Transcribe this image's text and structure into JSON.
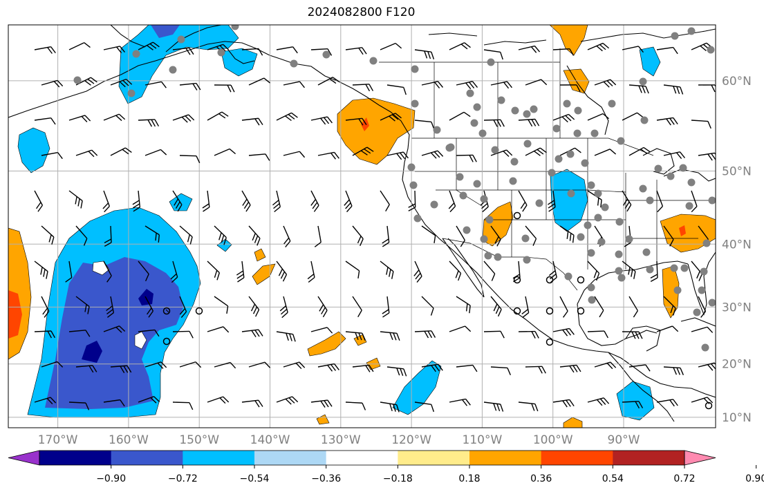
{
  "title": "2024082800 F120",
  "map": {
    "lon_range": [
      -177,
      -77
    ],
    "lat_range": [
      8,
      65
    ],
    "lat_gridlines": [
      {
        "value": 10,
        "label": "10°N"
      },
      {
        "value": 20,
        "label": "20°N"
      },
      {
        "value": 30,
        "label": "30°N"
      },
      {
        "value": 40,
        "label": "40°N"
      },
      {
        "value": 50,
        "label": "50°N"
      },
      {
        "value": 60,
        "label": "60°N"
      }
    ],
    "lon_gridlines": [
      {
        "value": -170,
        "label": "170°W"
      },
      {
        "value": -160,
        "label": "160°W"
      },
      {
        "value": -150,
        "label": "150°W"
      },
      {
        "value": -140,
        "label": "140°W"
      },
      {
        "value": -130,
        "label": "130°W"
      },
      {
        "value": -120,
        "label": "120°W"
      },
      {
        "value": -110,
        "label": "110°W"
      },
      {
        "value": -100,
        "label": "100°W"
      },
      {
        "value": -90,
        "label": "90°W"
      }
    ],
    "grid_color": "#b0b0b0",
    "fill_field_name": "",
    "overlays": [
      "wind-barbs",
      "station-markers",
      "coastlines",
      "state-borders"
    ]
  },
  "colorbar": {
    "orientation": "horizontal",
    "extend": "both",
    "bins": [
      {
        "color": "#9932cc"
      },
      {
        "color": "#00008b"
      },
      {
        "color": "#3a57cc"
      },
      {
        "color": "#00bfff"
      },
      {
        "color": "#add8f5"
      },
      {
        "color": "#ffffff"
      },
      {
        "color": "#ffec8b"
      },
      {
        "color": "#ffa500"
      },
      {
        "color": "#ff4500"
      },
      {
        "color": "#b22222"
      },
      {
        "color": "#ff8ab0"
      }
    ],
    "tick_labels": [
      "−0.90",
      "−0.72",
      "−0.54",
      "−0.36",
      "−0.18",
      "0.18",
      "0.36",
      "0.54",
      "0.72",
      "0.90"
    ]
  }
}
